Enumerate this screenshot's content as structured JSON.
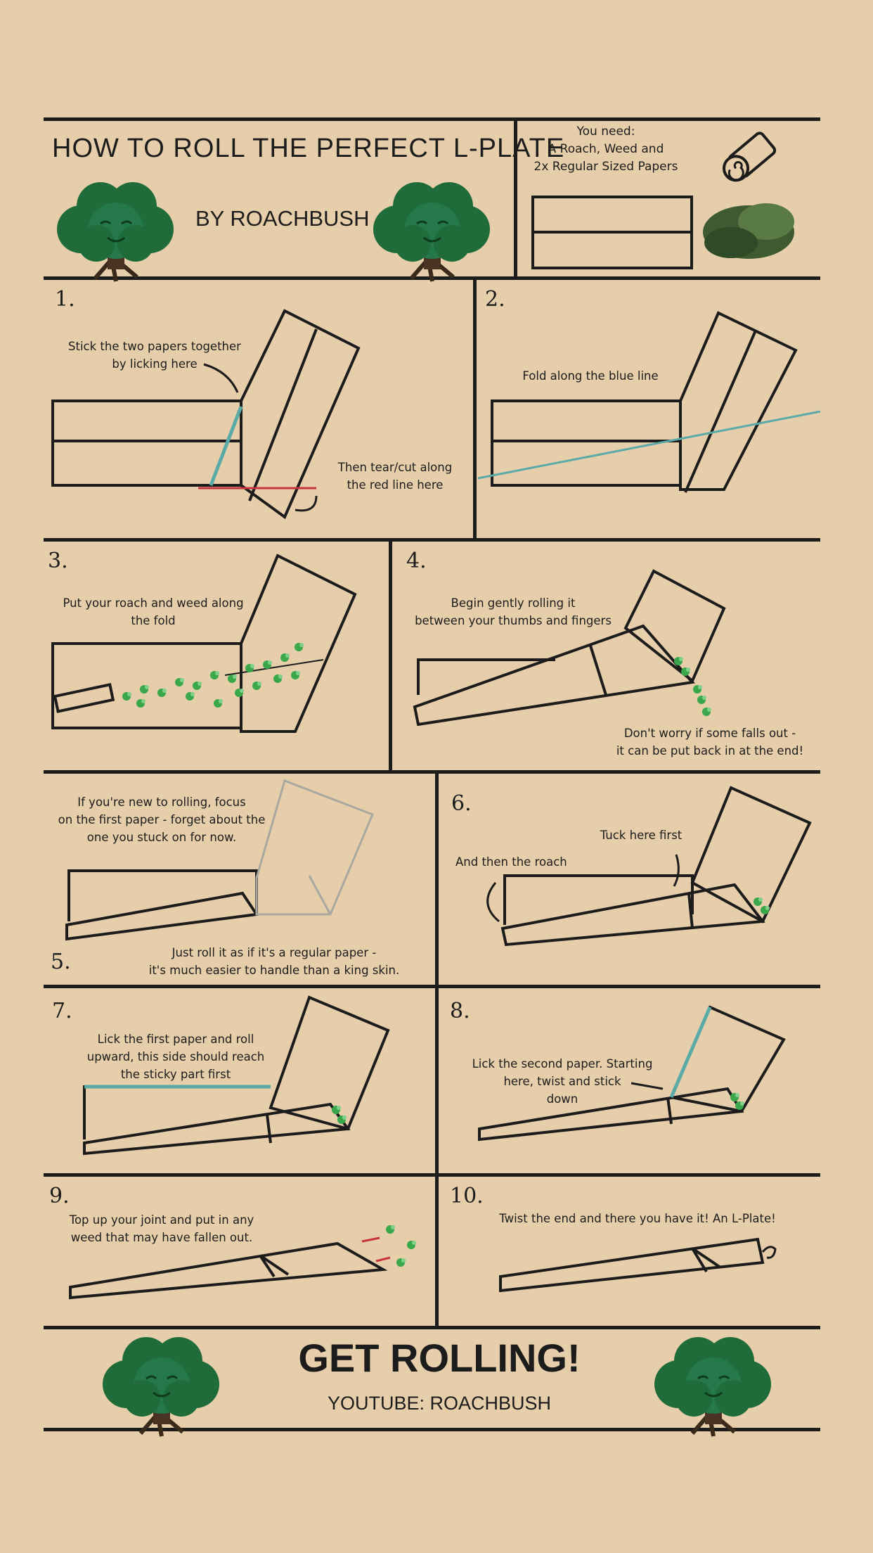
{
  "header": {
    "title": "HOW TO ROLL THE PERFECT L-PLATE",
    "byline": "BY ROACHBUSH",
    "need": [
      "You need:",
      "A Roach, Weed and",
      "2x Regular Sized Papers"
    ]
  },
  "steps": [
    {
      "num": "1.",
      "texts": [
        "Stick the two papers together\nby licking here",
        "Then tear/cut along\nthe red line here"
      ]
    },
    {
      "num": "2.",
      "texts": [
        "Fold along the blue line"
      ]
    },
    {
      "num": "3.",
      "texts": [
        "Put your roach and weed along\nthe fold"
      ]
    },
    {
      "num": "4.",
      "texts": [
        "Begin gently rolling it\nbetween your thumbs and fingers",
        "Don't worry if some falls out -\nit can be put back in at the end!"
      ]
    },
    {
      "num": "5.",
      "texts": [
        "If you're new to rolling, focus\non the first paper - forget about the\none you stuck on for now.",
        "Just roll it as if it's a regular paper -\nit's much easier to handle than a king skin."
      ]
    },
    {
      "num": "6.",
      "texts": [
        "Tuck here first",
        "And then the roach"
      ]
    },
    {
      "num": "7.",
      "texts": [
        "Lick the first paper and roll\nupward, this side should reach\nthe sticky part first"
      ]
    },
    {
      "num": "8.",
      "texts": [
        "Lick the second paper. Starting\nhere, twist and stick\ndown"
      ]
    },
    {
      "num": "9.",
      "texts": [
        "Top up your joint and put in any\nweed that may have fallen out."
      ]
    },
    {
      "num": "10.",
      "texts": [
        "Twist the end and there you have it! An L-Plate!"
      ]
    }
  ],
  "footer": {
    "title": "GET ROLLING!",
    "sub": "YOUTUBE: ROACHBUSH"
  },
  "colors": {
    "background": "#e6ceab",
    "ink": "#1c1c1c",
    "red_line": "#c8323c",
    "blue_line": "#5aaaa8",
    "weed": "#3aa84a",
    "tree": "#1f6b3a"
  }
}
